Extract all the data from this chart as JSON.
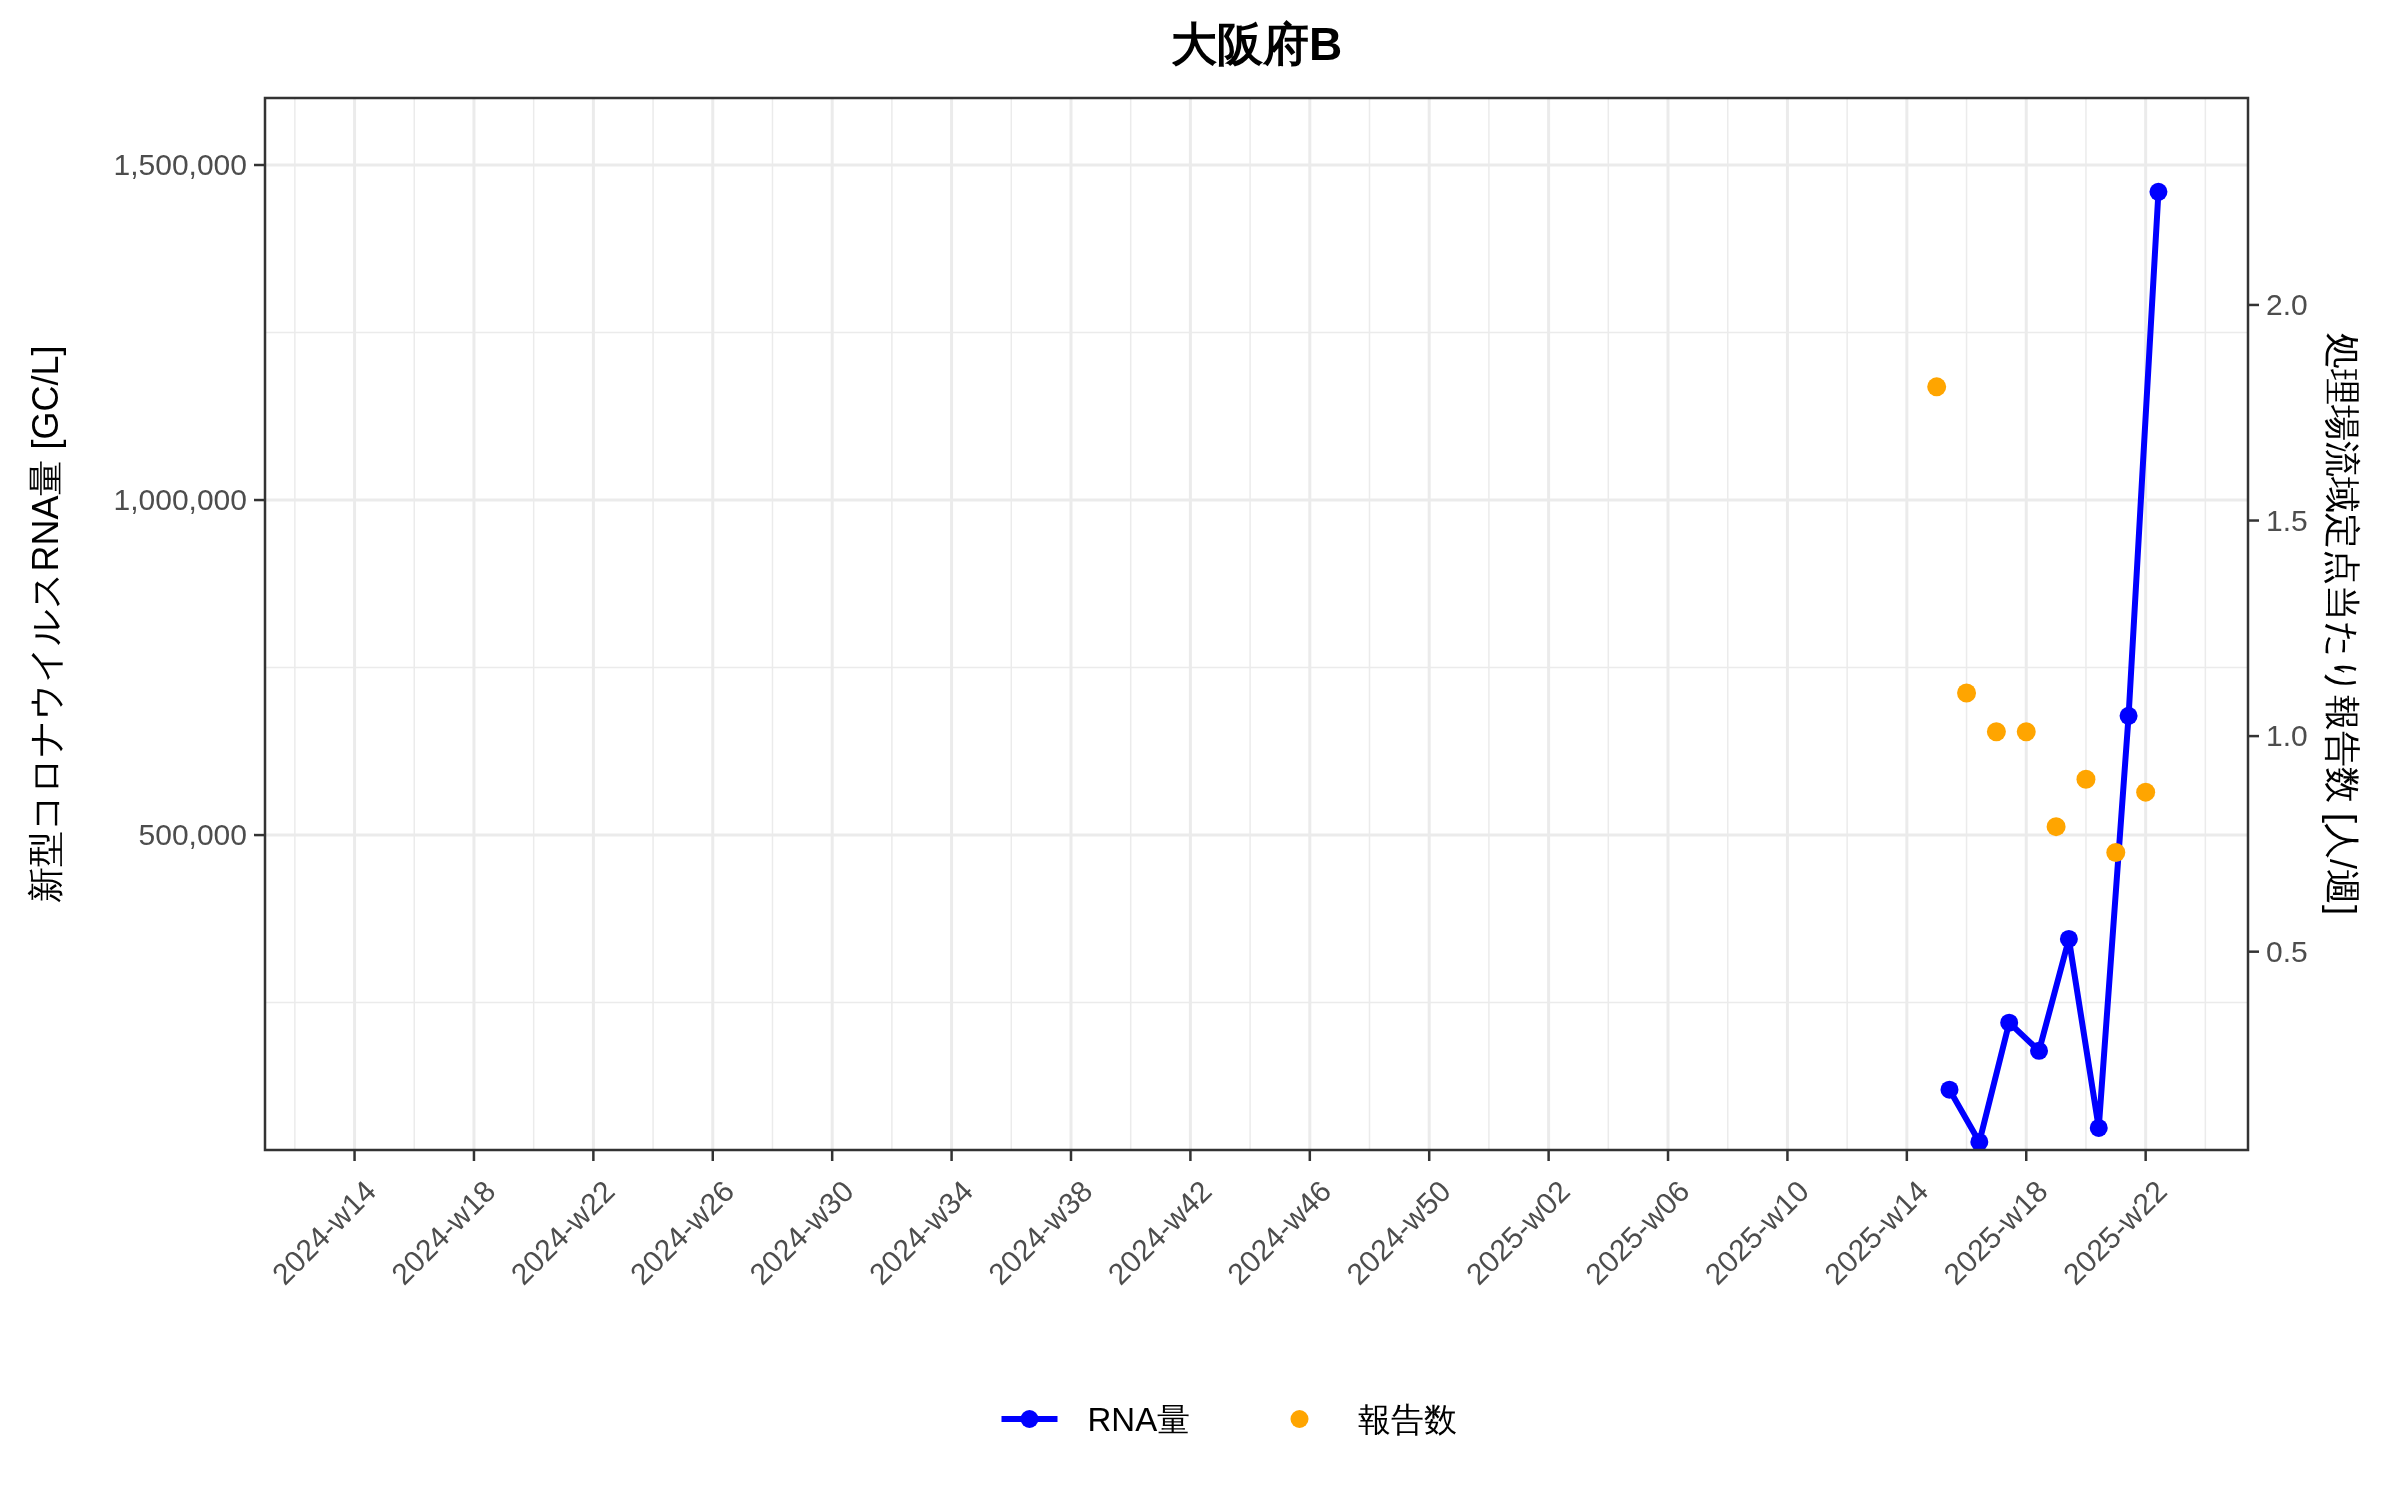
{
  "chart_data": {
    "type": "line",
    "title": "大阪府B",
    "ylabel": "新型コロナウイルスRNA量 [GC/L]",
    "y2label": "処理場流域定点当たり報告数 [人/週]",
    "xlim": [
      "2024-03-11",
      "2025-06-19"
    ],
    "xticks": [
      {
        "value": "2024-04-01",
        "label": "2024-w14"
      },
      {
        "value": "2024-04-29",
        "label": "2024-w18"
      },
      {
        "value": "2024-05-27",
        "label": "2024-w22"
      },
      {
        "value": "2024-06-24",
        "label": "2024-w26"
      },
      {
        "value": "2024-07-22",
        "label": "2024-w30"
      },
      {
        "value": "2024-08-19",
        "label": "2024-w34"
      },
      {
        "value": "2024-09-16",
        "label": "2024-w38"
      },
      {
        "value": "2024-10-14",
        "label": "2024-w42"
      },
      {
        "value": "2024-11-11",
        "label": "2024-w46"
      },
      {
        "value": "2024-12-09",
        "label": "2024-w50"
      },
      {
        "value": "2025-01-06",
        "label": "2025-w02"
      },
      {
        "value": "2025-02-03",
        "label": "2025-w06"
      },
      {
        "value": "2025-03-03",
        "label": "2025-w10"
      },
      {
        "value": "2025-03-31",
        "label": "2025-w14"
      },
      {
        "value": "2025-04-28",
        "label": "2025-w18"
      },
      {
        "value": "2025-05-26",
        "label": "2025-w22"
      }
    ],
    "ylim": [
      30000,
      1600000
    ],
    "yticks": [
      {
        "value": 500000,
        "label": "500,000"
      },
      {
        "value": 1000000,
        "label": "1,000,000"
      },
      {
        "value": 1500000,
        "label": "1,500,000"
      }
    ],
    "y2lim": [
      0.04,
      2.48
    ],
    "y2ticks": [
      0.5,
      {
        "value": 1,
        "label": "1.0"
      },
      1.5,
      {
        "value": 2,
        "label": "2.0"
      }
    ],
    "grid": true,
    "legend": "bottom",
    "series": [
      {
        "name": "RNA量",
        "marker": "circle",
        "color": "#0000ff",
        "x": [
          "2025-04-10",
          "2025-04-17",
          "2025-04-24",
          "2025-05-01",
          "2025-05-08",
          "2025-05-15",
          "2025-05-22",
          "2025-05-29"
        ],
        "values": [
          120000,
          42000,
          220000,
          178000,
          345000,
          63000,
          678000,
          1460000
        ]
      },
      {
        "name": "報告数",
        "type": "scatter",
        "axis": "y2",
        "marker": "circle",
        "color": "#ffa500",
        "x": [
          "2025-04-07",
          "2025-04-14",
          "2025-04-21",
          "2025-04-28",
          "2025-05-05",
          "2025-05-12",
          "2025-05-19",
          "2025-05-26"
        ],
        "values": [
          1.81,
          1.1,
          1.01,
          1.01,
          0.79,
          0.9,
          0.73,
          0.87
        ]
      }
    ]
  }
}
